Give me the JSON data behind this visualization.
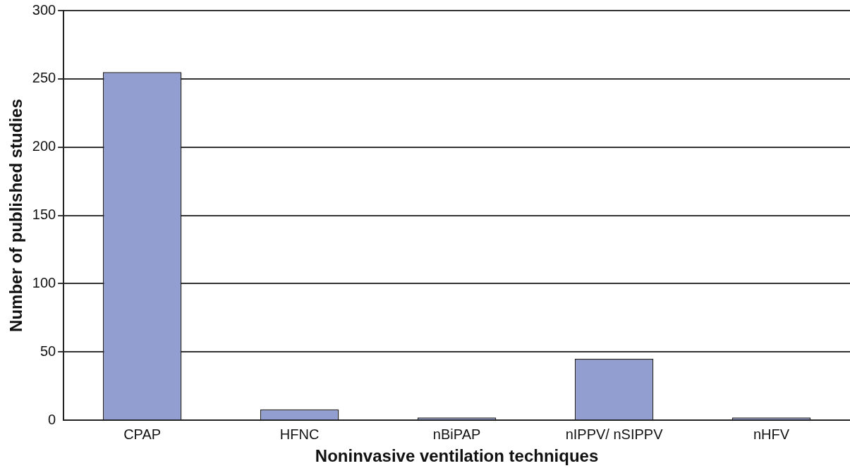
{
  "chart_data": {
    "type": "bar",
    "xlabel": "Noninvasive ventilation techniques",
    "ylabel": "Number of published studies",
    "categories": [
      "CPAP",
      "HFNC",
      "nBiPAP",
      "nIPPV/ nSIPPV",
      "nHFV"
    ],
    "values": [
      255,
      8,
      2,
      45,
      2
    ],
    "color": "#919ecf",
    "ylim": [
      0,
      300
    ],
    "yticks": [
      0,
      50,
      100,
      150,
      200,
      250,
      300
    ],
    "grid": "y",
    "legend": false
  }
}
